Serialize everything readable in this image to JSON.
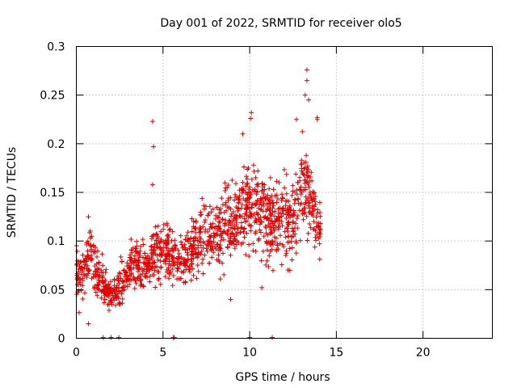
{
  "chart_data": {
    "type": "scatter",
    "title": "Day 001 of 2022, SRMTID for receiver olo5",
    "xlabel": "GPS time / hours",
    "ylabel": "SRMTID / TECUs",
    "xlim": [
      0,
      24
    ],
    "ylim": [
      0,
      0.3
    ],
    "xticks": [
      0,
      5,
      10,
      15,
      20
    ],
    "xtick_labels": [
      "0",
      "5",
      "10",
      "15",
      "20"
    ],
    "yticks": [
      0,
      0.05,
      0.1,
      0.15,
      0.2,
      0.25,
      0.3
    ],
    "ytick_labels": [
      "0",
      "0.05",
      "0.1",
      "0.15",
      "0.2",
      "0.25",
      "0.3"
    ],
    "grid": true,
    "marker": "+",
    "color": "#e00000",
    "trend": [
      {
        "x": 0.0,
        "y": 0.065
      },
      {
        "x": 0.5,
        "y": 0.07
      },
      {
        "x": 0.8,
        "y": 0.09
      },
      {
        "x": 1.2,
        "y": 0.065
      },
      {
        "x": 1.6,
        "y": 0.05
      },
      {
        "x": 2.0,
        "y": 0.045
      },
      {
        "x": 2.5,
        "y": 0.05
      },
      {
        "x": 3.0,
        "y": 0.07
      },
      {
        "x": 3.5,
        "y": 0.075
      },
      {
        "x": 4.0,
        "y": 0.07
      },
      {
        "x": 4.5,
        "y": 0.085
      },
      {
        "x": 5.0,
        "y": 0.09
      },
      {
        "x": 5.5,
        "y": 0.08
      },
      {
        "x": 6.0,
        "y": 0.075
      },
      {
        "x": 6.5,
        "y": 0.085
      },
      {
        "x": 7.0,
        "y": 0.1
      },
      {
        "x": 7.5,
        "y": 0.11
      },
      {
        "x": 8.0,
        "y": 0.1
      },
      {
        "x": 8.5,
        "y": 0.115
      },
      {
        "x": 9.0,
        "y": 0.12
      },
      {
        "x": 9.5,
        "y": 0.13
      },
      {
        "x": 10.0,
        "y": 0.14
      },
      {
        "x": 10.5,
        "y": 0.13
      },
      {
        "x": 11.0,
        "y": 0.12
      },
      {
        "x": 11.5,
        "y": 0.12
      },
      {
        "x": 12.0,
        "y": 0.12
      },
      {
        "x": 12.5,
        "y": 0.125
      },
      {
        "x": 13.0,
        "y": 0.15
      },
      {
        "x": 13.5,
        "y": 0.15
      },
      {
        "x": 14.0,
        "y": 0.11
      }
    ],
    "spread": [
      {
        "x": 0.0,
        "s": 0.02
      },
      {
        "x": 0.8,
        "s": 0.025
      },
      {
        "x": 2.0,
        "s": 0.015
      },
      {
        "x": 4.0,
        "s": 0.025
      },
      {
        "x": 6.0,
        "s": 0.025
      },
      {
        "x": 8.0,
        "s": 0.03
      },
      {
        "x": 10.0,
        "s": 0.035
      },
      {
        "x": 12.0,
        "s": 0.035
      },
      {
        "x": 13.0,
        "s": 0.04
      },
      {
        "x": 14.0,
        "s": 0.025
      }
    ],
    "outliers": [
      {
        "x": 4.4,
        "y": 0.223
      },
      {
        "x": 4.45,
        "y": 0.197
      },
      {
        "x": 4.4,
        "y": 0.158
      },
      {
        "x": 13.3,
        "y": 0.276
      },
      {
        "x": 13.3,
        "y": 0.265
      },
      {
        "x": 13.2,
        "y": 0.25
      },
      {
        "x": 13.4,
        "y": 0.245
      },
      {
        "x": 10.1,
        "y": 0.232
      },
      {
        "x": 10.05,
        "y": 0.226
      },
      {
        "x": 9.6,
        "y": 0.21
      },
      {
        "x": 12.7,
        "y": 0.225
      },
      {
        "x": 13.9,
        "y": 0.227
      },
      {
        "x": 13.9,
        "y": 0.225
      },
      {
        "x": 0.7,
        "y": 0.125
      },
      {
        "x": 0.7,
        "y": 0.015
      },
      {
        "x": 8.9,
        "y": 0.04
      },
      {
        "x": 10.7,
        "y": 0.052
      }
    ],
    "zero_points": [
      1.55,
      2.0,
      2.45,
      5.6,
      5.65,
      10.0,
      11.3
    ],
    "x_extent": [
      0.0,
      14.1
    ],
    "point_count": 1400
  }
}
